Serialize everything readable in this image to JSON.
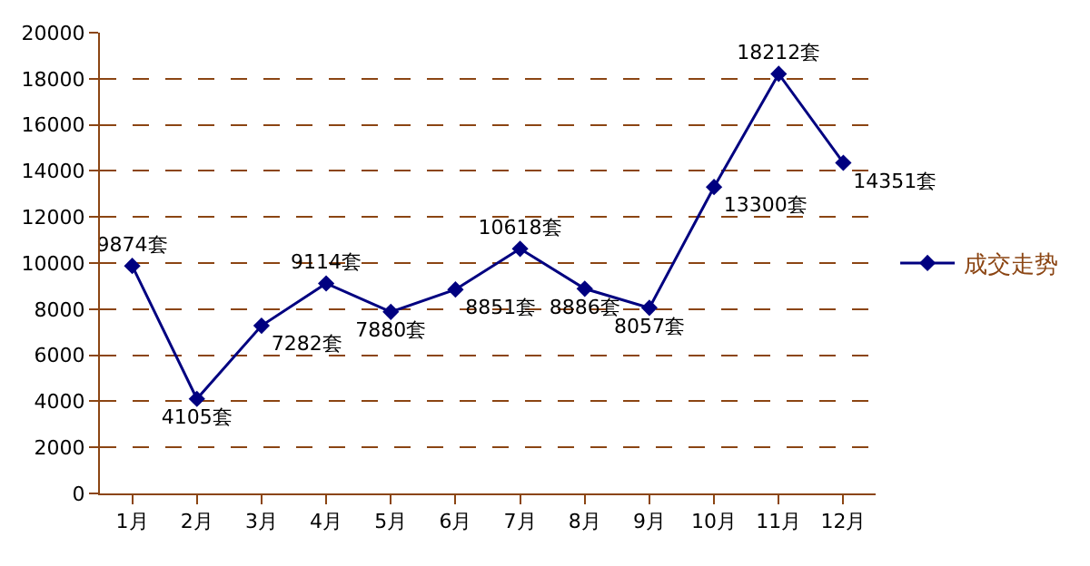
{
  "chart_data": {
    "type": "line",
    "categories": [
      "1月",
      "2月",
      "3月",
      "4月",
      "5月",
      "6月",
      "7月",
      "8月",
      "9月",
      "10月",
      "11月",
      "12月"
    ],
    "series": [
      {
        "name": "成交走势",
        "color": "#000080",
        "values": [
          9874,
          4105,
          7282,
          9114,
          7880,
          8851,
          10618,
          8886,
          8057,
          13300,
          18212,
          14351
        ],
        "value_labels": [
          "9874套",
          "4105套",
          "7282套",
          "9114套",
          "7880套",
          "8851套",
          "10618套",
          "8886套",
          "8057套",
          "13300套",
          "18212套",
          "14351套"
        ]
      }
    ],
    "ylim": [
      0,
      20000
    ],
    "yticks": [
      0,
      2000,
      4000,
      6000,
      8000,
      10000,
      12000,
      14000,
      16000,
      18000,
      20000
    ],
    "grid": "y",
    "legend": "right",
    "marker": "diamond",
    "line_style": "solid"
  }
}
